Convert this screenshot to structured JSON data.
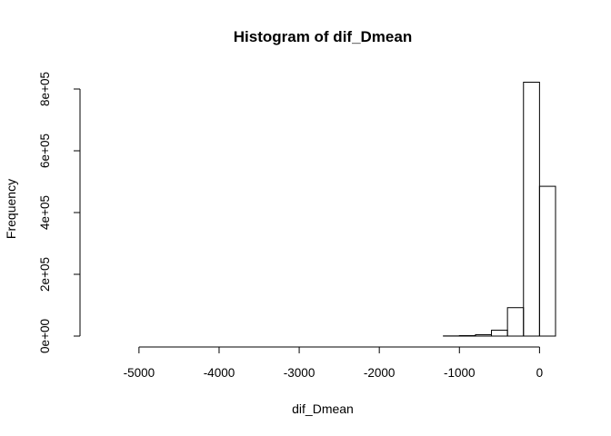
{
  "chart_data": {
    "type": "bar",
    "title": "Histogram of dif_Dmean",
    "xlabel": "dif_Dmean",
    "ylabel": "Frequency",
    "bin_width": 200,
    "bin_start": -5600,
    "bins": [
      -5600,
      -5400,
      -5200,
      -5000,
      -4800,
      -4600,
      -4400,
      -4200,
      -4000,
      -3800,
      -3600,
      -3400,
      -3200,
      -3000,
      -2800,
      -2600,
      -2400,
      -2200,
      -2000,
      -1800,
      -1600,
      -1400,
      -1200,
      -1000,
      -800,
      -600,
      -400,
      -200,
      0
    ],
    "values": [
      0,
      0,
      0,
      0,
      0,
      0,
      0,
      0,
      0,
      0,
      0,
      0,
      0,
      0,
      0,
      0,
      0,
      0,
      0,
      0,
      0,
      0,
      500,
      1500,
      4500,
      19000,
      92000,
      822000,
      485000
    ],
    "xlim": [
      -5600,
      200
    ],
    "ylim": [
      0,
      800000
    ],
    "x_ticks": [
      -5000,
      -4000,
      -3000,
      -2000,
      -1000,
      0
    ],
    "x_tick_labels": [
      "-5000",
      "-4000",
      "-3000",
      "-2000",
      "-1000",
      "0"
    ],
    "y_ticks": [
      0,
      200000,
      400000,
      600000,
      800000
    ],
    "y_tick_labels": [
      "0e+00",
      "2e+05",
      "4e+05",
      "6e+05",
      "8e+05"
    ],
    "grid": false,
    "legend": "none"
  }
}
